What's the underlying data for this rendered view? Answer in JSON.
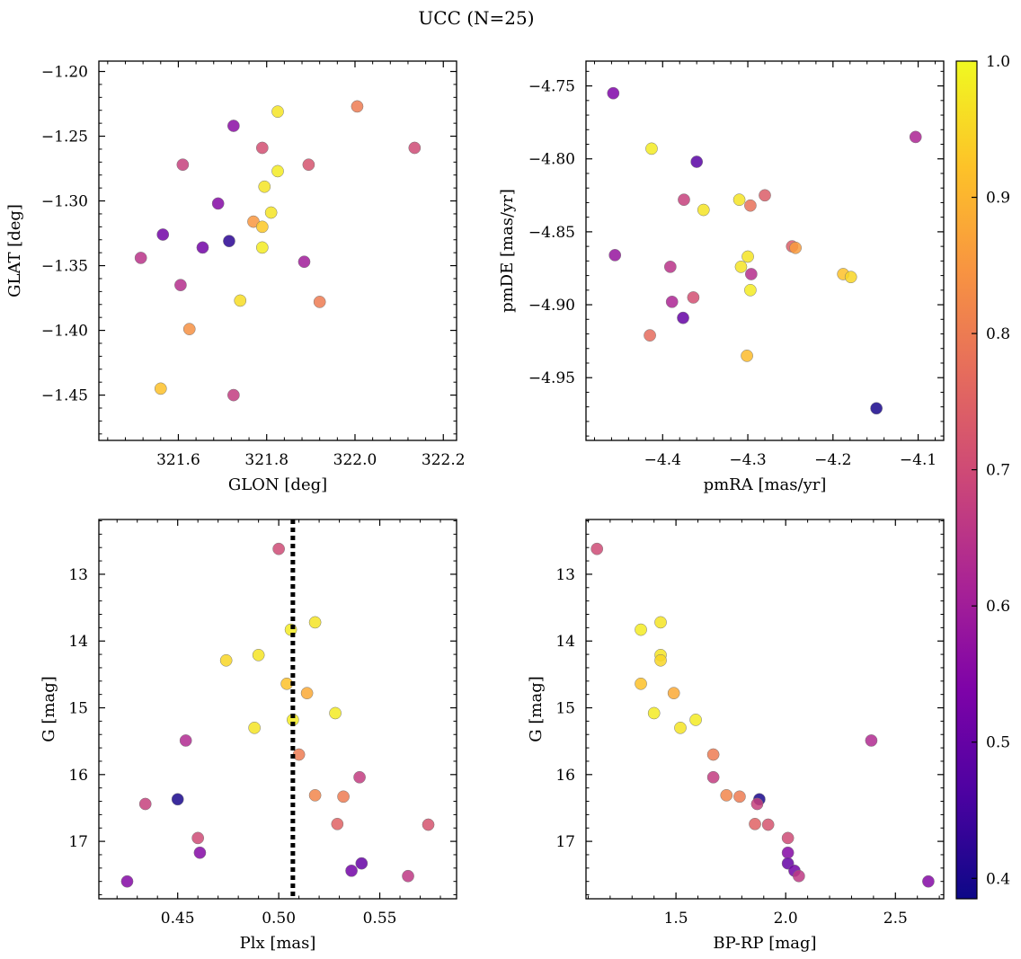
{
  "figure": {
    "title": "UCC (N=25)",
    "colorbar": {
      "ticks": [
        0.4,
        0.5,
        0.6,
        0.7,
        0.8,
        0.9,
        1.0
      ],
      "tick_labels": [
        "0.4",
        "0.5",
        "0.6",
        "0.7",
        "0.8",
        "0.9",
        "1.0"
      ],
      "range": [
        0.385,
        1.0
      ],
      "colormap": "plasma"
    }
  },
  "chart_data": [
    {
      "type": "scatter",
      "xlabel": "GLON [deg]",
      "ylabel": "GLAT [deg]",
      "xlim": [
        321.42,
        322.23
      ],
      "ylim": [
        -1.485,
        -1.192
      ],
      "xticks": [
        321.6,
        321.8,
        322.0,
        322.2
      ],
      "xtick_labels": [
        "321.6",
        "321.8",
        "322.0",
        "322.2"
      ],
      "yticks": [
        -1.45,
        -1.4,
        -1.35,
        -1.3,
        -1.25,
        -1.2
      ],
      "ytick_labels": [
        "−1.45",
        "−1.40",
        "−1.35",
        "−1.30",
        "−1.25",
        "−1.20"
      ],
      "y_inverted": false,
      "points": [
        {
          "x": 321.825,
          "y": -1.231,
          "c": 0.97
        },
        {
          "x": 322.005,
          "y": -1.227,
          "c": 0.8
        },
        {
          "x": 321.725,
          "y": -1.242,
          "c": 0.56
        },
        {
          "x": 321.79,
          "y": -1.259,
          "c": 0.71
        },
        {
          "x": 322.135,
          "y": -1.259,
          "c": 0.7
        },
        {
          "x": 321.61,
          "y": -1.272,
          "c": 0.68
        },
        {
          "x": 321.895,
          "y": -1.272,
          "c": 0.72
        },
        {
          "x": 321.825,
          "y": -1.277,
          "c": 0.98
        },
        {
          "x": 321.795,
          "y": -1.289,
          "c": 0.97
        },
        {
          "x": 321.69,
          "y": -1.302,
          "c": 0.55
        },
        {
          "x": 321.81,
          "y": -1.309,
          "c": 0.97
        },
        {
          "x": 321.77,
          "y": -1.316,
          "c": 0.85
        },
        {
          "x": 321.79,
          "y": -1.32,
          "c": 0.93
        },
        {
          "x": 321.565,
          "y": -1.326,
          "c": 0.52
        },
        {
          "x": 321.715,
          "y": -1.331,
          "c": 0.42
        },
        {
          "x": 321.655,
          "y": -1.336,
          "c": 0.52
        },
        {
          "x": 321.79,
          "y": -1.336,
          "c": 0.98
        },
        {
          "x": 321.515,
          "y": -1.344,
          "c": 0.65
        },
        {
          "x": 321.885,
          "y": -1.347,
          "c": 0.6
        },
        {
          "x": 321.605,
          "y": -1.365,
          "c": 0.64
        },
        {
          "x": 321.74,
          "y": -1.377,
          "c": 0.96
        },
        {
          "x": 321.92,
          "y": -1.378,
          "c": 0.8
        },
        {
          "x": 321.625,
          "y": -1.399,
          "c": 0.84
        },
        {
          "x": 321.56,
          "y": -1.445,
          "c": 0.92
        },
        {
          "x": 321.725,
          "y": -1.45,
          "c": 0.67
        }
      ]
    },
    {
      "type": "scatter",
      "xlabel": "pmRA [mas/yr]",
      "ylabel": "pmDE [mas/yr]",
      "xlim": [
        -4.49,
        -4.07
      ],
      "ylim": [
        -4.993,
        -4.733
      ],
      "xticks": [
        -4.4,
        -4.3,
        -4.2,
        -4.1
      ],
      "xtick_labels": [
        "−4.4",
        "−4.3",
        "−4.2",
        "−4.1"
      ],
      "yticks": [
        -4.95,
        -4.9,
        -4.85,
        -4.8,
        -4.75
      ],
      "ytick_labels": [
        "−4.95",
        "−4.90",
        "−4.85",
        "−4.80",
        "−4.75"
      ],
      "y_inverted": false,
      "points": [
        {
          "x": -4.458,
          "y": -4.755,
          "c": 0.54
        },
        {
          "x": -4.413,
          "y": -4.793,
          "c": 0.98
        },
        {
          "x": -4.36,
          "y": -4.802,
          "c": 0.48
        },
        {
          "x": -4.103,
          "y": -4.785,
          "c": 0.62
        },
        {
          "x": -4.375,
          "y": -4.828,
          "c": 0.68
        },
        {
          "x": -4.352,
          "y": -4.835,
          "c": 0.97
        },
        {
          "x": -4.31,
          "y": -4.828,
          "c": 0.97
        },
        {
          "x": -4.297,
          "y": -4.832,
          "c": 0.78
        },
        {
          "x": -4.28,
          "y": -4.825,
          "c": 0.74
        },
        {
          "x": -4.456,
          "y": -4.866,
          "c": 0.58
        },
        {
          "x": -4.248,
          "y": -4.86,
          "c": 0.74
        },
        {
          "x": -4.244,
          "y": -4.861,
          "c": 0.86
        },
        {
          "x": -4.3,
          "y": -4.867,
          "c": 0.97
        },
        {
          "x": -4.308,
          "y": -4.874,
          "c": 0.97
        },
        {
          "x": -4.391,
          "y": -4.874,
          "c": 0.65
        },
        {
          "x": -4.296,
          "y": -4.879,
          "c": 0.64
        },
        {
          "x": -4.188,
          "y": -4.879,
          "c": 0.92
        },
        {
          "x": -4.179,
          "y": -4.881,
          "c": 0.95
        },
        {
          "x": -4.297,
          "y": -4.89,
          "c": 0.98
        },
        {
          "x": -4.389,
          "y": -4.898,
          "c": 0.62
        },
        {
          "x": -4.364,
          "y": -4.895,
          "c": 0.71
        },
        {
          "x": -4.376,
          "y": -4.909,
          "c": 0.5
        },
        {
          "x": -4.415,
          "y": -4.921,
          "c": 0.77
        },
        {
          "x": -4.301,
          "y": -4.935,
          "c": 0.91
        },
        {
          "x": -4.149,
          "y": -4.971,
          "c": 0.4
        }
      ]
    },
    {
      "type": "scatter",
      "xlabel": "Plx [mas]",
      "ylabel": "G [mag]",
      "xlim": [
        0.411,
        0.588
      ],
      "ylim": [
        17.86,
        12.18
      ],
      "xticks": [
        0.45,
        0.5,
        0.55
      ],
      "xtick_labels": [
        "0.45",
        "0.50",
        "0.55"
      ],
      "yticks": [
        13,
        14,
        15,
        16,
        17
      ],
      "ytick_labels": [
        "13",
        "14",
        "15",
        "16",
        "17"
      ],
      "y_inverted": true,
      "vline": {
        "x": 0.507,
        "style": "dotted"
      },
      "points": [
        {
          "x": 0.5,
          "y": 12.62,
          "c": 0.7
        },
        {
          "x": 0.518,
          "y": 13.72,
          "c": 0.97
        },
        {
          "x": 0.506,
          "y": 13.83,
          "c": 0.98
        },
        {
          "x": 0.49,
          "y": 14.21,
          "c": 0.97
        },
        {
          "x": 0.474,
          "y": 14.29,
          "c": 0.95
        },
        {
          "x": 0.504,
          "y": 14.64,
          "c": 0.92
        },
        {
          "x": 0.514,
          "y": 14.78,
          "c": 0.88
        },
        {
          "x": 0.528,
          "y": 15.08,
          "c": 0.98
        },
        {
          "x": 0.507,
          "y": 15.18,
          "c": 0.98
        },
        {
          "x": 0.488,
          "y": 15.3,
          "c": 0.97
        },
        {
          "x": 0.454,
          "y": 15.49,
          "c": 0.63
        },
        {
          "x": 0.51,
          "y": 15.7,
          "c": 0.8
        },
        {
          "x": 0.54,
          "y": 16.04,
          "c": 0.67
        },
        {
          "x": 0.518,
          "y": 16.31,
          "c": 0.82
        },
        {
          "x": 0.532,
          "y": 16.33,
          "c": 0.8
        },
        {
          "x": 0.45,
          "y": 16.37,
          "c": 0.4
        },
        {
          "x": 0.434,
          "y": 16.44,
          "c": 0.68
        },
        {
          "x": 0.529,
          "y": 16.74,
          "c": 0.75
        },
        {
          "x": 0.574,
          "y": 16.75,
          "c": 0.72
        },
        {
          "x": 0.46,
          "y": 16.95,
          "c": 0.7
        },
        {
          "x": 0.461,
          "y": 17.17,
          "c": 0.55
        },
        {
          "x": 0.541,
          "y": 17.33,
          "c": 0.5
        },
        {
          "x": 0.536,
          "y": 17.44,
          "c": 0.52
        },
        {
          "x": 0.564,
          "y": 17.52,
          "c": 0.66
        },
        {
          "x": 0.425,
          "y": 17.6,
          "c": 0.55
        }
      ]
    },
    {
      "type": "scatter",
      "xlabel": "BP-RP [mag]",
      "ylabel": "G [mag]",
      "xlim": [
        1.09,
        2.72
      ],
      "ylim": [
        17.86,
        12.18
      ],
      "xticks": [
        1.5,
        2.0,
        2.5
      ],
      "xtick_labels": [
        "1.5",
        "2.0",
        "2.5"
      ],
      "yticks": [
        13,
        14,
        15,
        16,
        17
      ],
      "ytick_labels": [
        "13",
        "14",
        "15",
        "16",
        "17"
      ],
      "y_inverted": true,
      "points": [
        {
          "x": 1.14,
          "y": 12.62,
          "c": 0.7
        },
        {
          "x": 1.43,
          "y": 13.72,
          "c": 0.97
        },
        {
          "x": 1.34,
          "y": 13.83,
          "c": 0.98
        },
        {
          "x": 1.43,
          "y": 14.21,
          "c": 0.97
        },
        {
          "x": 1.43,
          "y": 14.29,
          "c": 0.95
        },
        {
          "x": 1.34,
          "y": 14.64,
          "c": 0.92
        },
        {
          "x": 1.49,
          "y": 14.78,
          "c": 0.88
        },
        {
          "x": 1.4,
          "y": 15.08,
          "c": 0.98
        },
        {
          "x": 1.59,
          "y": 15.18,
          "c": 0.98
        },
        {
          "x": 1.52,
          "y": 15.3,
          "c": 0.97
        },
        {
          "x": 2.39,
          "y": 15.49,
          "c": 0.63
        },
        {
          "x": 1.67,
          "y": 15.7,
          "c": 0.8
        },
        {
          "x": 1.67,
          "y": 16.04,
          "c": 0.67
        },
        {
          "x": 1.73,
          "y": 16.31,
          "c": 0.82
        },
        {
          "x": 1.79,
          "y": 16.33,
          "c": 0.8
        },
        {
          "x": 1.88,
          "y": 16.37,
          "c": 0.4
        },
        {
          "x": 1.87,
          "y": 16.44,
          "c": 0.68
        },
        {
          "x": 1.86,
          "y": 16.74,
          "c": 0.75
        },
        {
          "x": 1.92,
          "y": 16.75,
          "c": 0.72
        },
        {
          "x": 2.01,
          "y": 16.95,
          "c": 0.7
        },
        {
          "x": 2.01,
          "y": 17.17,
          "c": 0.55
        },
        {
          "x": 2.01,
          "y": 17.33,
          "c": 0.5
        },
        {
          "x": 2.04,
          "y": 17.44,
          "c": 0.52
        },
        {
          "x": 2.06,
          "y": 17.52,
          "c": 0.66
        },
        {
          "x": 2.65,
          "y": 17.6,
          "c": 0.55
        }
      ]
    }
  ]
}
